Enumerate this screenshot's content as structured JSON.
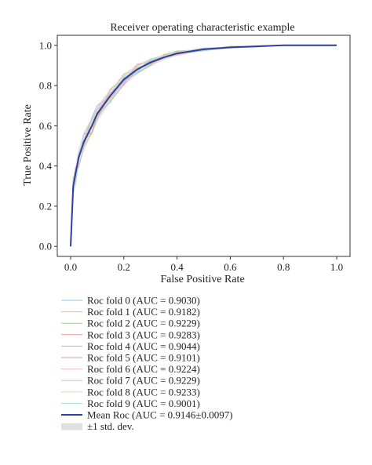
{
  "chart_data": {
    "type": "line",
    "title": "Receiver operating characteristic example",
    "xlabel": "False Positive Rate",
    "ylabel": "True Positive Rate",
    "xlim": [
      -0.05,
      1.05
    ],
    "ylim": [
      -0.05,
      1.05
    ],
    "xticks": [
      "0.0",
      "0.2",
      "0.4",
      "0.6",
      "0.8",
      "1.0"
    ],
    "yticks": [
      "0.0",
      "0.2",
      "0.4",
      "0.6",
      "0.8",
      "1.0"
    ],
    "grid": false,
    "legend_position": "below",
    "mean_fpr": [
      0.0,
      0.01,
      0.02,
      0.03,
      0.05,
      0.08,
      0.1,
      0.15,
      0.2,
      0.25,
      0.3,
      0.35,
      0.4,
      0.5,
      0.6,
      0.7,
      0.8,
      0.9,
      1.0
    ],
    "series": [
      {
        "name": "Roc fold 0 (AUC = 0.9030)",
        "color": "#9ec3df",
        "auc": 0.903
      },
      {
        "name": "Roc fold 1 (AUC = 0.9182)",
        "color": "#f4b98a",
        "auc": 0.9182
      },
      {
        "name": "Roc fold 2 (AUC = 0.9229)",
        "color": "#a9cf8e",
        "auc": 0.9229
      },
      {
        "name": "Roc fold 3 (AUC = 0.9283)",
        "color": "#ee9a9a",
        "auc": 0.9283
      },
      {
        "name": "Roc fold 4 (AUC = 0.9044)",
        "color": "#c3b1d8",
        "auc": 0.9044
      },
      {
        "name": "Roc fold 5 (AUC = 0.9101)",
        "color": "#c9a79f",
        "auc": 0.9101
      },
      {
        "name": "Roc fold 6 (AUC = 0.9224)",
        "color": "#f1b6d8",
        "auc": 0.9224
      },
      {
        "name": "Roc fold 7 (AUC = 0.9229)",
        "color": "#c6c6c6",
        "auc": 0.9229
      },
      {
        "name": "Roc fold 8 (AUC = 0.9233)",
        "color": "#dede8e",
        "auc": 0.9233
      },
      {
        "name": "Roc fold 9 (AUC = 0.9001)",
        "color": "#9fdfe6",
        "auc": 0.9001
      }
    ],
    "mean_series": {
      "name": "Mean Roc (AUC = 0.9146±0.0097)",
      "color": "#2d3fa0",
      "tpr": [
        0.0,
        0.3,
        0.37,
        0.44,
        0.52,
        0.6,
        0.66,
        0.75,
        0.83,
        0.88,
        0.915,
        0.94,
        0.96,
        0.98,
        0.99,
        0.995,
        1.0,
        1.0,
        1.0
      ]
    },
    "std_band": {
      "name": "±1 std. dev.",
      "color": "#cccccc",
      "std": [
        0.0,
        0.05,
        0.05,
        0.05,
        0.045,
        0.04,
        0.04,
        0.035,
        0.03,
        0.025,
        0.02,
        0.015,
        0.012,
        0.008,
        0.005,
        0.003,
        0.0,
        0.0,
        0.0
      ]
    }
  }
}
